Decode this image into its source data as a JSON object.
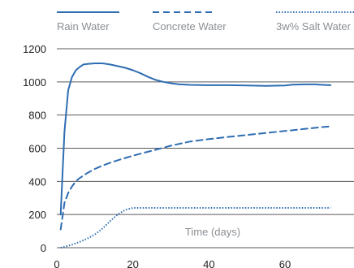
{
  "chart_data": {
    "type": "line",
    "annotation": "Time (days)",
    "xlim": [
      0,
      80
    ],
    "ylim": [
      0,
      1200
    ],
    "x_ticks": [
      0,
      20,
      40,
      60
    ],
    "x_tick_labels": [
      "0",
      "20",
      "40",
      "60"
    ],
    "y_ticks": [
      0,
      200,
      400,
      600,
      800,
      1000,
      1200
    ],
    "y_tick_labels": [
      "0",
      "200",
      "400",
      "600",
      "800",
      "1000",
      "1200"
    ],
    "grid": "horizontal",
    "legend_position": "top",
    "series": [
      {
        "name": "Rain Water",
        "color": "#2f6db2",
        "style": "solid",
        "x": [
          1,
          2,
          3,
          4,
          5,
          6,
          7,
          8,
          10,
          12,
          14,
          16,
          18,
          20,
          22,
          24,
          26,
          28,
          30,
          32,
          35,
          40,
          45,
          50,
          55,
          60,
          62,
          65,
          68,
          70,
          72
        ],
        "y": [
          200,
          700,
          950,
          1030,
          1070,
          1090,
          1105,
          1108,
          1112,
          1112,
          1105,
          1095,
          1085,
          1070,
          1052,
          1030,
          1012,
          1000,
          992,
          986,
          982,
          980,
          980,
          978,
          976,
          978,
          983,
          985,
          985,
          982,
          980
        ]
      },
      {
        "name": "Concrete Water",
        "color": "#2f6db2",
        "style": "dashed",
        "x": [
          1,
          2,
          3,
          4,
          5,
          6,
          8,
          10,
          12,
          15,
          20,
          25,
          30,
          35,
          40,
          45,
          50,
          55,
          60,
          65,
          70,
          72
        ],
        "y": [
          110,
          270,
          330,
          370,
          400,
          420,
          450,
          475,
          495,
          520,
          555,
          585,
          615,
          640,
          655,
          668,
          680,
          692,
          704,
          716,
          728,
          732
        ]
      },
      {
        "name": "3w% Salt Water",
        "color": "#2f6db2",
        "style": "dotted",
        "x": [
          1,
          2,
          4,
          6,
          8,
          10,
          12,
          14,
          16,
          18,
          20,
          25,
          30,
          40,
          50,
          60,
          70,
          72
        ],
        "y": [
          0,
          5,
          18,
          35,
          55,
          80,
          115,
          160,
          200,
          228,
          240,
          240,
          240,
          240,
          240,
          240,
          240,
          240
        ]
      }
    ]
  }
}
